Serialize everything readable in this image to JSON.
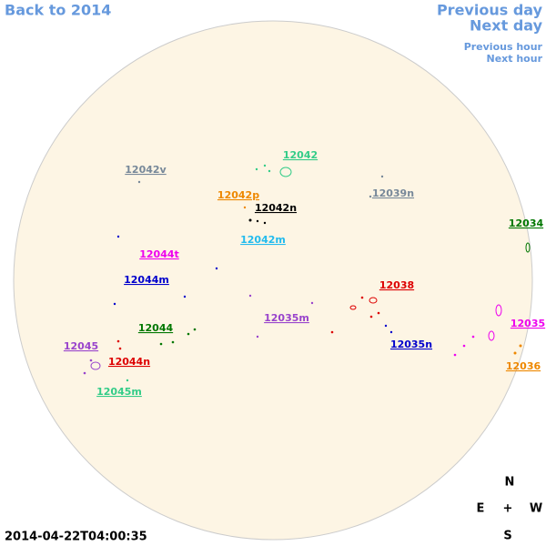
{
  "nav": {
    "back": "Back to 2014",
    "previous_day": "Previous day",
    "next_day": "Next day",
    "previous_hour": "Previous hour",
    "next_hour": "Next hour"
  },
  "timestamp": "2014-04-22T04:00:35",
  "compass": {
    "north": "N",
    "east": "E",
    "center": "+",
    "west": "W",
    "south": "S"
  },
  "regions": [
    {
      "label": "12042",
      "color": "#33cc88"
    },
    {
      "label": "12042v",
      "color": "#778899"
    },
    {
      "label": "12042p",
      "color": "#ee8800"
    },
    {
      "label": "12042n",
      "color": "#000000"
    },
    {
      "label": "12039n",
      "color": "#778899"
    },
    {
      "label": "12034",
      "color": "#007700"
    },
    {
      "label": "12044t",
      "color": "#ee00ee"
    },
    {
      "label": "12042m",
      "color": "#22bbee"
    },
    {
      "label": "12044m",
      "color": "#0000cc"
    },
    {
      "label": "12038",
      "color": "#dd0000"
    },
    {
      "label": "12035m",
      "color": "#9944cc"
    },
    {
      "label": "12044",
      "color": "#007700"
    },
    {
      "label": "12035",
      "color": "#ee00ee"
    },
    {
      "label": "12035n",
      "color": "#0000cc"
    },
    {
      "label": "12045",
      "color": "#9944cc"
    },
    {
      "label": "12044n",
      "color": "#dd0000"
    },
    {
      "label": "12036",
      "color": "#ee8800"
    },
    {
      "label": "12045m",
      "color": "#33cc88"
    }
  ]
}
